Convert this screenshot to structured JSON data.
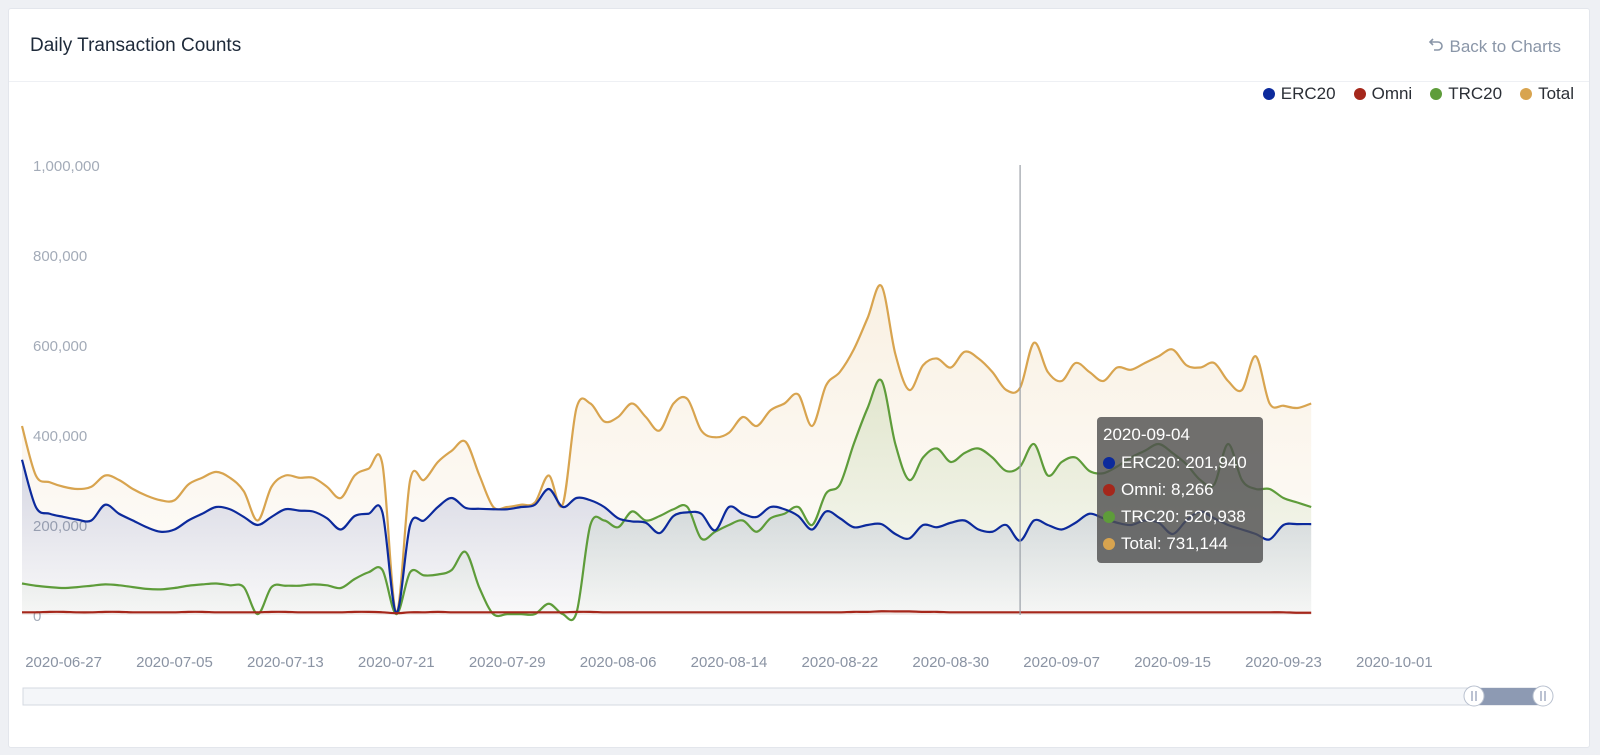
{
  "header": {
    "title": "Daily Transaction Counts",
    "back_label": "Back to Charts"
  },
  "colors": {
    "ERC20": "#0c2a9c",
    "Omni": "#a5271b",
    "TRC20": "#5e9c3a",
    "Total": "#d8a44f"
  },
  "tooltip": {
    "date": "2020-09-04",
    "rows": [
      {
        "name": "ERC20",
        "text": "ERC20: 201,940"
      },
      {
        "name": "Omni",
        "text": "Omni: 8,266"
      },
      {
        "name": "TRC20",
        "text": "TRC20: 520,938"
      },
      {
        "name": "Total",
        "text": "Total: 731,144"
      }
    ]
  },
  "chart_data": {
    "type": "area",
    "title": "Daily Transaction Counts",
    "xlabel": "",
    "ylabel": "",
    "ylim": [
      0,
      1000000
    ],
    "yticks": [
      "1,000,000",
      "800,000",
      "600,000",
      "400,000",
      "200,000",
      "0"
    ],
    "ytick_values": [
      1000000,
      800000,
      600000,
      400000,
      200000,
      0
    ],
    "x_start": "2020-06-24",
    "x_end": "2020-10-11",
    "xticks": [
      "2020-06-27",
      "2020-07-05",
      "2020-07-13",
      "2020-07-21",
      "2020-07-29",
      "2020-08-06",
      "2020-08-14",
      "2020-08-22",
      "2020-08-30",
      "2020-09-07",
      "2020-09-15",
      "2020-09-23",
      "2020-10-01"
    ],
    "legend_position": "top-right",
    "grid": false,
    "highlight_date": "2020-09-04",
    "series": [
      {
        "name": "ERC20",
        "values": [
          345000,
          240000,
          225000,
          218000,
          212000,
          210000,
          245000,
          225000,
          210000,
          195000,
          185000,
          190000,
          210000,
          225000,
          240000,
          235000,
          218000,
          200000,
          218000,
          235000,
          232000,
          230000,
          215000,
          190000,
          220000,
          225000,
          228000,
          5000,
          200000,
          210000,
          240000,
          260000,
          238000,
          236000,
          235000,
          235000,
          240000,
          245000,
          280000,
          240000,
          260000,
          255000,
          240000,
          215000,
          208000,
          205000,
          182000,
          220000,
          228000,
          225000,
          188000,
          240000,
          225000,
          218000,
          240000,
          235000,
          220000,
          190000,
          230000,
          215000,
          195000,
          200000,
          201940,
          180000,
          170000,
          200000,
          195000,
          205000,
          210000,
          190000,
          185000,
          200000,
          165000,
          210000,
          200000,
          190000,
          205000,
          225000,
          215000,
          205000,
          200000,
          210000,
          205000,
          180000,
          210000,
          230000,
          215000,
          200000,
          190000,
          180000,
          168000,
          200000,
          202000,
          202000
        ]
      },
      {
        "name": "Omni",
        "values": [
          6000,
          6000,
          7000,
          7000,
          6000,
          6000,
          7000,
          7000,
          6000,
          6000,
          6000,
          6000,
          7000,
          7000,
          6000,
          6000,
          6000,
          6000,
          7000,
          7000,
          6000,
          6000,
          6000,
          6000,
          7000,
          7000,
          6000,
          4000,
          6000,
          6000,
          7000,
          6000,
          6000,
          6000,
          6000,
          6000,
          6000,
          6000,
          6000,
          6000,
          7000,
          7000,
          6000,
          6000,
          6000,
          6000,
          6000,
          6000,
          6000,
          6000,
          6000,
          6000,
          6000,
          6000,
          6000,
          6000,
          6000,
          6000,
          6000,
          6000,
          7000,
          7000,
          8266,
          8000,
          8000,
          7000,
          7000,
          6000,
          6000,
          6000,
          6000,
          6000,
          6000,
          6000,
          6000,
          6000,
          6000,
          6000,
          6000,
          6000,
          6000,
          6000,
          6000,
          6000,
          6000,
          6000,
          6000,
          6000,
          6000,
          6000,
          6000,
          6000,
          5000,
          5000
        ]
      },
      {
        "name": "TRC20",
        "values": [
          70000,
          65000,
          62000,
          60000,
          62000,
          65000,
          68000,
          66000,
          62000,
          58000,
          57000,
          60000,
          65000,
          68000,
          70000,
          66000,
          62000,
          2000,
          62000,
          65000,
          65000,
          68000,
          66000,
          60000,
          80000,
          95000,
          100000,
          2000,
          95000,
          88000,
          90000,
          100000,
          140000,
          60000,
          2000,
          2000,
          2000,
          2000,
          25000,
          2000,
          5000,
          200000,
          210000,
          195000,
          230000,
          210000,
          220000,
          235000,
          240000,
          170000,
          185000,
          200000,
          210000,
          185000,
          215000,
          225000,
          240000,
          200000,
          270000,
          290000,
          380000,
          460000,
          520938,
          380000,
          300000,
          350000,
          370000,
          340000,
          360000,
          370000,
          350000,
          320000,
          330000,
          380000,
          310000,
          340000,
          350000,
          320000,
          315000,
          330000,
          350000,
          365000,
          380000,
          360000,
          335000,
          300000,
          290000,
          380000,
          300000,
          280000,
          280000,
          260000,
          250000,
          240000
        ]
      },
      {
        "name": "Total",
        "values": [
          420000,
          310000,
          295000,
          285000,
          280000,
          285000,
          310000,
          300000,
          280000,
          265000,
          255000,
          255000,
          290000,
          305000,
          318000,
          305000,
          275000,
          210000,
          285000,
          310000,
          305000,
          305000,
          285000,
          260000,
          310000,
          325000,
          335000,
          5000,
          300000,
          300000,
          340000,
          365000,
          385000,
          310000,
          240000,
          240000,
          245000,
          250000,
          310000,
          245000,
          460000,
          470000,
          430000,
          440000,
          470000,
          440000,
          410000,
          470000,
          480000,
          410000,
          395000,
          405000,
          440000,
          420000,
          455000,
          470000,
          490000,
          420000,
          510000,
          540000,
          590000,
          660000,
          731144,
          580000,
          500000,
          555000,
          570000,
          550000,
          585000,
          570000,
          540000,
          500000,
          505000,
          605000,
          540000,
          520000,
          560000,
          540000,
          520000,
          550000,
          545000,
          560000,
          575000,
          590000,
          555000,
          550000,
          560000,
          520000,
          500000,
          575000,
          470000,
          465000,
          460000,
          470000
        ]
      }
    ]
  }
}
